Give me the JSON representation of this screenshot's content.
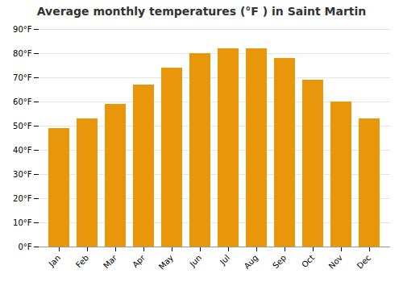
{
  "chart_data": {
    "type": "bar",
    "title": "Average monthly temperatures (°F ) in Saint Martin",
    "categories": [
      "Jan",
      "Feb",
      "Mar",
      "Apr",
      "May",
      "Jun",
      "Jul",
      "Aug",
      "Sep",
      "Oct",
      "Nov",
      "Dec"
    ],
    "values": [
      49,
      53,
      59,
      67,
      74,
      80,
      82,
      82,
      78,
      69,
      60,
      53
    ],
    "color": "#E8960A",
    "ylim": [
      0,
      90
    ],
    "yticks": [
      {
        "value": 0,
        "label": "0°F"
      },
      {
        "value": 10,
        "label": "10°F"
      },
      {
        "value": 20,
        "label": "20°F"
      },
      {
        "value": 30,
        "label": "30°F"
      },
      {
        "value": 40,
        "label": "40°F"
      },
      {
        "value": 50,
        "label": "50°F"
      },
      {
        "value": 60,
        "label": "60°F"
      },
      {
        "value": 70,
        "label": "70°F"
      },
      {
        "value": 80,
        "label": "80°F"
      },
      {
        "value": 90,
        "label": "90°F"
      }
    ],
    "grid": true
  }
}
